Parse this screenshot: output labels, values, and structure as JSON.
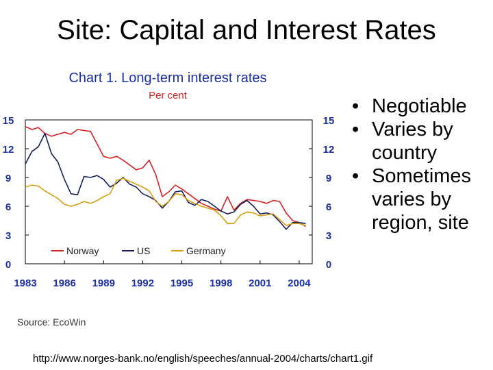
{
  "slide": {
    "title": "Site: Capital and Interest Rates",
    "bullets": [
      "Negotiable",
      "Varies by country",
      "Sometimes varies by region, site"
    ],
    "url": "http://www.norges-bank.no/english/speeches/annual-2004/charts/chart1.gif"
  },
  "chart_data": {
    "type": "line",
    "title": "Chart 1. Long-term interest rates",
    "subtitle": "Per cent",
    "source": "Source: EcoWin",
    "ylim": [
      0,
      15
    ],
    "yticks": [
      0,
      3,
      6,
      9,
      12,
      15
    ],
    "xlim": [
      1983,
      2005
    ],
    "xticks": [
      1983,
      1986,
      1989,
      1992,
      1995,
      1998,
      2001,
      2004
    ],
    "grid": false,
    "legend_position": "bottom",
    "title_color": "#1a2fa6",
    "series": [
      {
        "name": "Norway",
        "color": "#d42222",
        "x": [
          1983.0,
          1983.5,
          1984.0,
          1984.5,
          1985.0,
          1985.5,
          1986.0,
          1986.5,
          1987.0,
          1987.5,
          1988.0,
          1988.5,
          1989.0,
          1989.5,
          1990.0,
          1990.5,
          1991.0,
          1991.5,
          1992.0,
          1992.5,
          1993.0,
          1993.5,
          1994.0,
          1994.5,
          1995.0,
          1995.5,
          1996.0,
          1996.5,
          1997.0,
          1997.5,
          1998.0,
          1998.5,
          1999.0,
          1999.5,
          2000.0,
          2000.5,
          2001.0,
          2001.5,
          2002.0,
          2002.5,
          2003.0,
          2003.5,
          2004.0,
          2004.5
        ],
        "y": [
          14.3,
          14.0,
          14.2,
          13.6,
          13.3,
          13.5,
          13.7,
          13.5,
          14.0,
          13.9,
          13.8,
          12.5,
          11.2,
          11.0,
          11.2,
          10.8,
          10.3,
          9.8,
          10.0,
          10.8,
          9.3,
          7.0,
          7.5,
          8.2,
          7.8,
          7.3,
          6.8,
          6.3,
          6.0,
          5.7,
          5.5,
          7.0,
          5.6,
          6.3,
          6.7,
          6.6,
          6.5,
          6.3,
          6.6,
          6.5,
          5.3,
          4.5,
          4.3,
          3.9
        ]
      },
      {
        "name": "US",
        "color": "#141e5c",
        "x": [
          1983.0,
          1983.5,
          1984.0,
          1984.5,
          1985.0,
          1985.5,
          1986.0,
          1986.5,
          1987.0,
          1987.5,
          1988.0,
          1988.5,
          1989.0,
          1989.5,
          1990.0,
          1990.5,
          1991.0,
          1991.5,
          1992.0,
          1992.5,
          1993.0,
          1993.5,
          1994.0,
          1994.5,
          1995.0,
          1995.5,
          1996.0,
          1996.5,
          1997.0,
          1997.5,
          1998.0,
          1998.5,
          1999.0,
          1999.5,
          2000.0,
          2000.5,
          2001.0,
          2001.5,
          2002.0,
          2002.5,
          2003.0,
          2003.5,
          2004.0,
          2004.5
        ],
        "y": [
          10.4,
          11.7,
          12.2,
          13.6,
          11.5,
          10.6,
          8.8,
          7.3,
          7.2,
          9.1,
          9.0,
          9.2,
          8.8,
          8.0,
          8.4,
          9.0,
          8.3,
          8.0,
          7.3,
          7.0,
          6.6,
          5.8,
          6.5,
          7.5,
          7.6,
          6.4,
          6.1,
          6.7,
          6.5,
          6.0,
          5.5,
          5.2,
          5.4,
          6.2,
          6.6,
          6.0,
          5.2,
          5.3,
          5.1,
          4.4,
          3.6,
          4.3,
          4.3,
          4.2
        ]
      },
      {
        "name": "Germany",
        "color": "#d8a010",
        "x": [
          1983.0,
          1983.5,
          1984.0,
          1984.5,
          1985.0,
          1985.5,
          1986.0,
          1986.5,
          1987.0,
          1987.5,
          1988.0,
          1988.5,
          1989.0,
          1989.5,
          1990.0,
          1990.5,
          1991.0,
          1991.5,
          1992.0,
          1992.5,
          1993.0,
          1993.5,
          1994.0,
          1994.5,
          1995.0,
          1995.5,
          1996.0,
          1996.5,
          1997.0,
          1997.5,
          1998.0,
          1998.5,
          1999.0,
          1999.5,
          2000.0,
          2000.5,
          2001.0,
          2001.5,
          2002.0,
          2002.5,
          2003.0,
          2003.5,
          2004.0,
          2004.5
        ],
        "y": [
          8.0,
          8.2,
          8.1,
          7.6,
          7.2,
          6.8,
          6.2,
          6.0,
          6.2,
          6.5,
          6.3,
          6.6,
          7.0,
          7.3,
          8.7,
          8.9,
          8.6,
          8.3,
          8.0,
          7.6,
          6.5,
          6.0,
          6.5,
          7.3,
          7.2,
          6.6,
          6.3,
          6.0,
          5.8,
          5.6,
          5.0,
          4.2,
          4.2,
          5.1,
          5.4,
          5.3,
          5.0,
          5.1,
          5.2,
          4.6,
          4.0,
          4.2,
          4.2,
          4.0
        ]
      }
    ]
  }
}
